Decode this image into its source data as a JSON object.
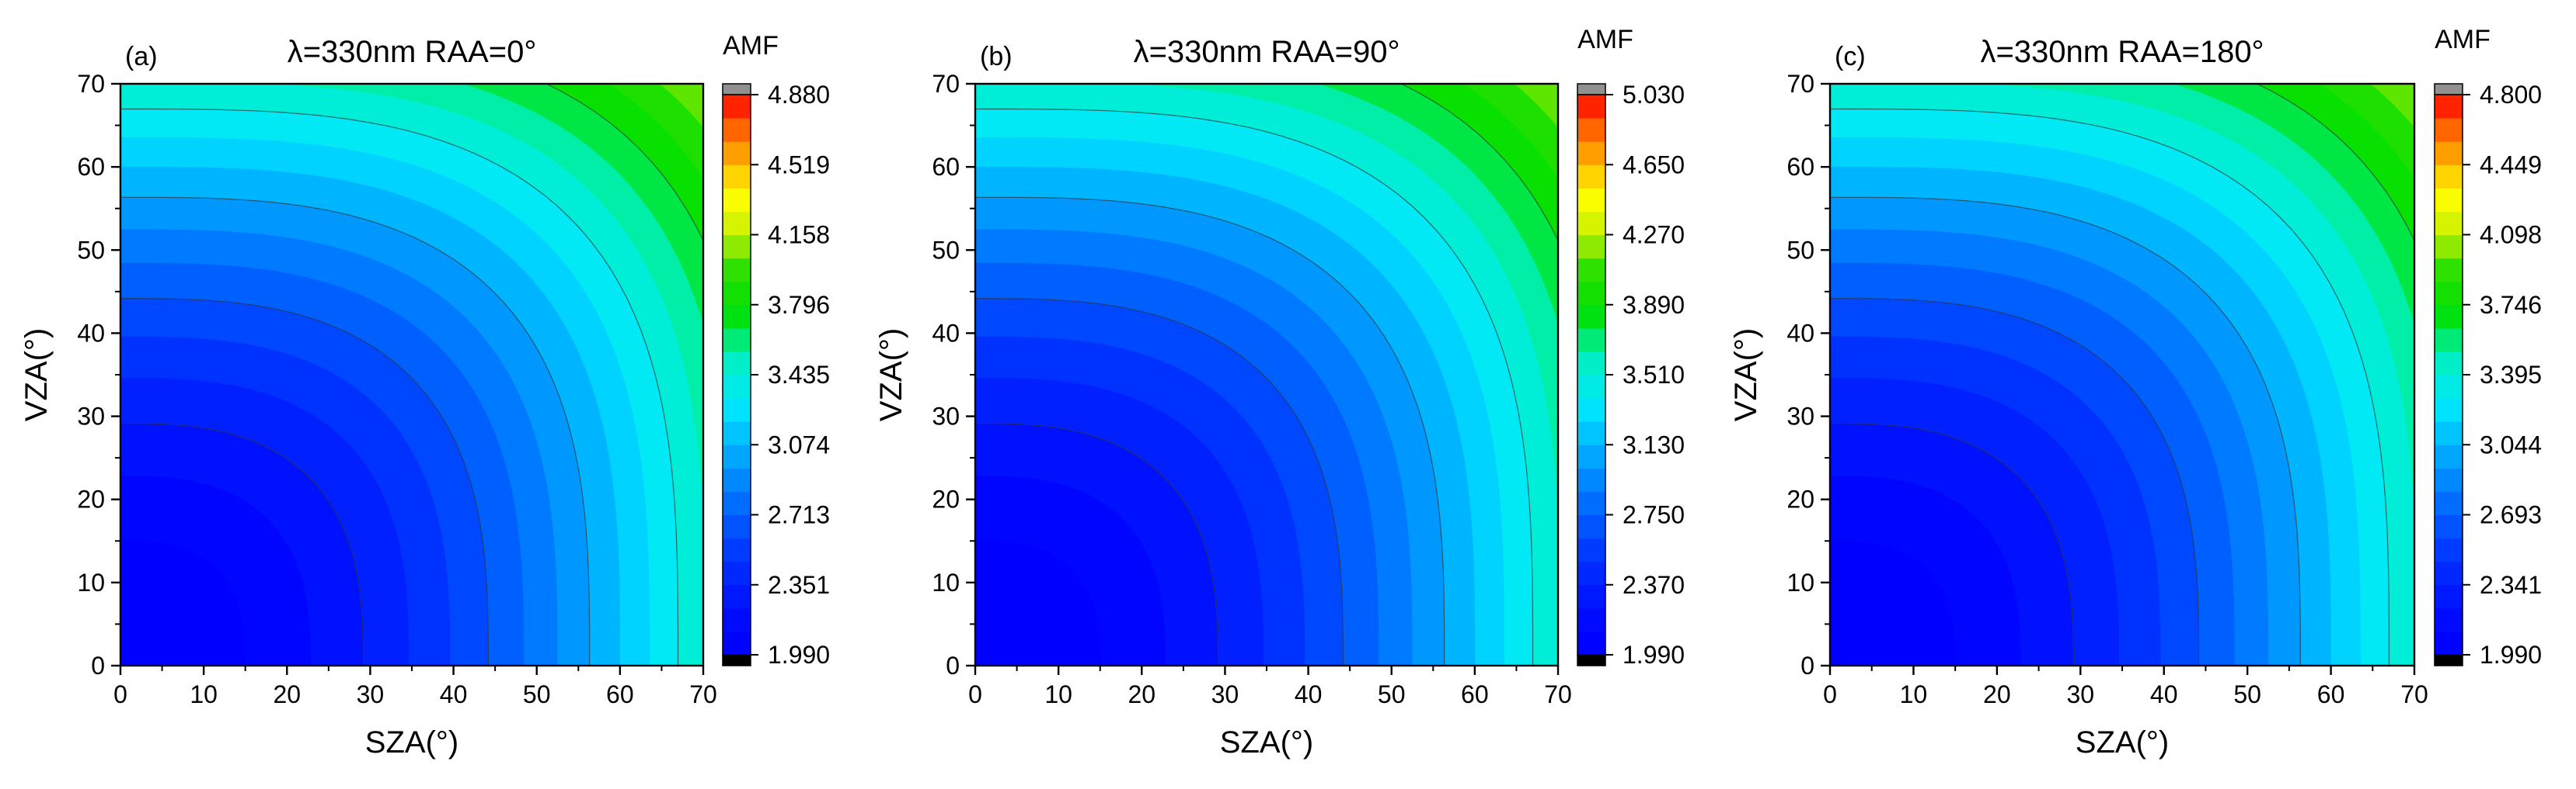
{
  "chart_data": [
    {
      "type": "heatmap",
      "panel_label": "(a)",
      "title": "λ=330nm RAA=0°",
      "xlabel": "SZA(°)",
      "ylabel": "VZA(°)",
      "xlim": [
        0,
        70
      ],
      "ylim": [
        0,
        70
      ],
      "xticks": [
        "0",
        "10",
        "20",
        "30",
        "40",
        "50",
        "60",
        "70"
      ],
      "yticks": [
        "0",
        "10",
        "20",
        "30",
        "40",
        "50",
        "60",
        "70"
      ],
      "colorbar_title": "AMF",
      "colorbar_ticks": [
        "1.990",
        "2.351",
        "2.713",
        "3.074",
        "3.435",
        "3.796",
        "4.158",
        "4.519",
        "4.880"
      ],
      "zmin": 1.99,
      "zmax": 4.88
    },
    {
      "type": "heatmap",
      "panel_label": "(b)",
      "title": "λ=330nm RAA=90°",
      "xlabel": "SZA(°)",
      "ylabel": "VZA(°)",
      "xlim": [
        0,
        70
      ],
      "ylim": [
        0,
        70
      ],
      "xticks": [
        "0",
        "10",
        "20",
        "30",
        "40",
        "50",
        "60",
        "70"
      ],
      "yticks": [
        "0",
        "10",
        "20",
        "30",
        "40",
        "50",
        "60",
        "70"
      ],
      "colorbar_title": "AMF",
      "colorbar_ticks": [
        "1.990",
        "2.370",
        "2.750",
        "3.130",
        "3.510",
        "3.890",
        "4.270",
        "4.650",
        "5.030"
      ],
      "zmin": 1.99,
      "zmax": 5.03
    },
    {
      "type": "heatmap",
      "panel_label": "(c)",
      "title": "λ=330nm RAA=180°",
      "xlabel": "SZA(°)",
      "ylabel": "VZA(°)",
      "xlim": [
        0,
        70
      ],
      "ylim": [
        0,
        70
      ],
      "xticks": [
        "0",
        "10",
        "20",
        "30",
        "40",
        "50",
        "60",
        "70"
      ],
      "yticks": [
        "0",
        "10",
        "20",
        "30",
        "40",
        "50",
        "60",
        "70"
      ],
      "colorbar_title": "AMF",
      "colorbar_ticks": [
        "1.990",
        "2.341",
        "2.693",
        "3.044",
        "3.395",
        "3.746",
        "4.098",
        "4.449",
        "4.800"
      ],
      "zmin": 1.99,
      "zmax": 4.8
    }
  ],
  "colors": {
    "colormap": [
      "#0000ff",
      "#0050ff",
      "#00a0ff",
      "#00e8ff",
      "#00f0c0",
      "#00e000",
      "#28e000",
      "#c8f000",
      "#ffff00",
      "#ffb000",
      "#ff6000",
      "#ff0000"
    ],
    "below_range": "#000000",
    "above_range": "#909090"
  }
}
